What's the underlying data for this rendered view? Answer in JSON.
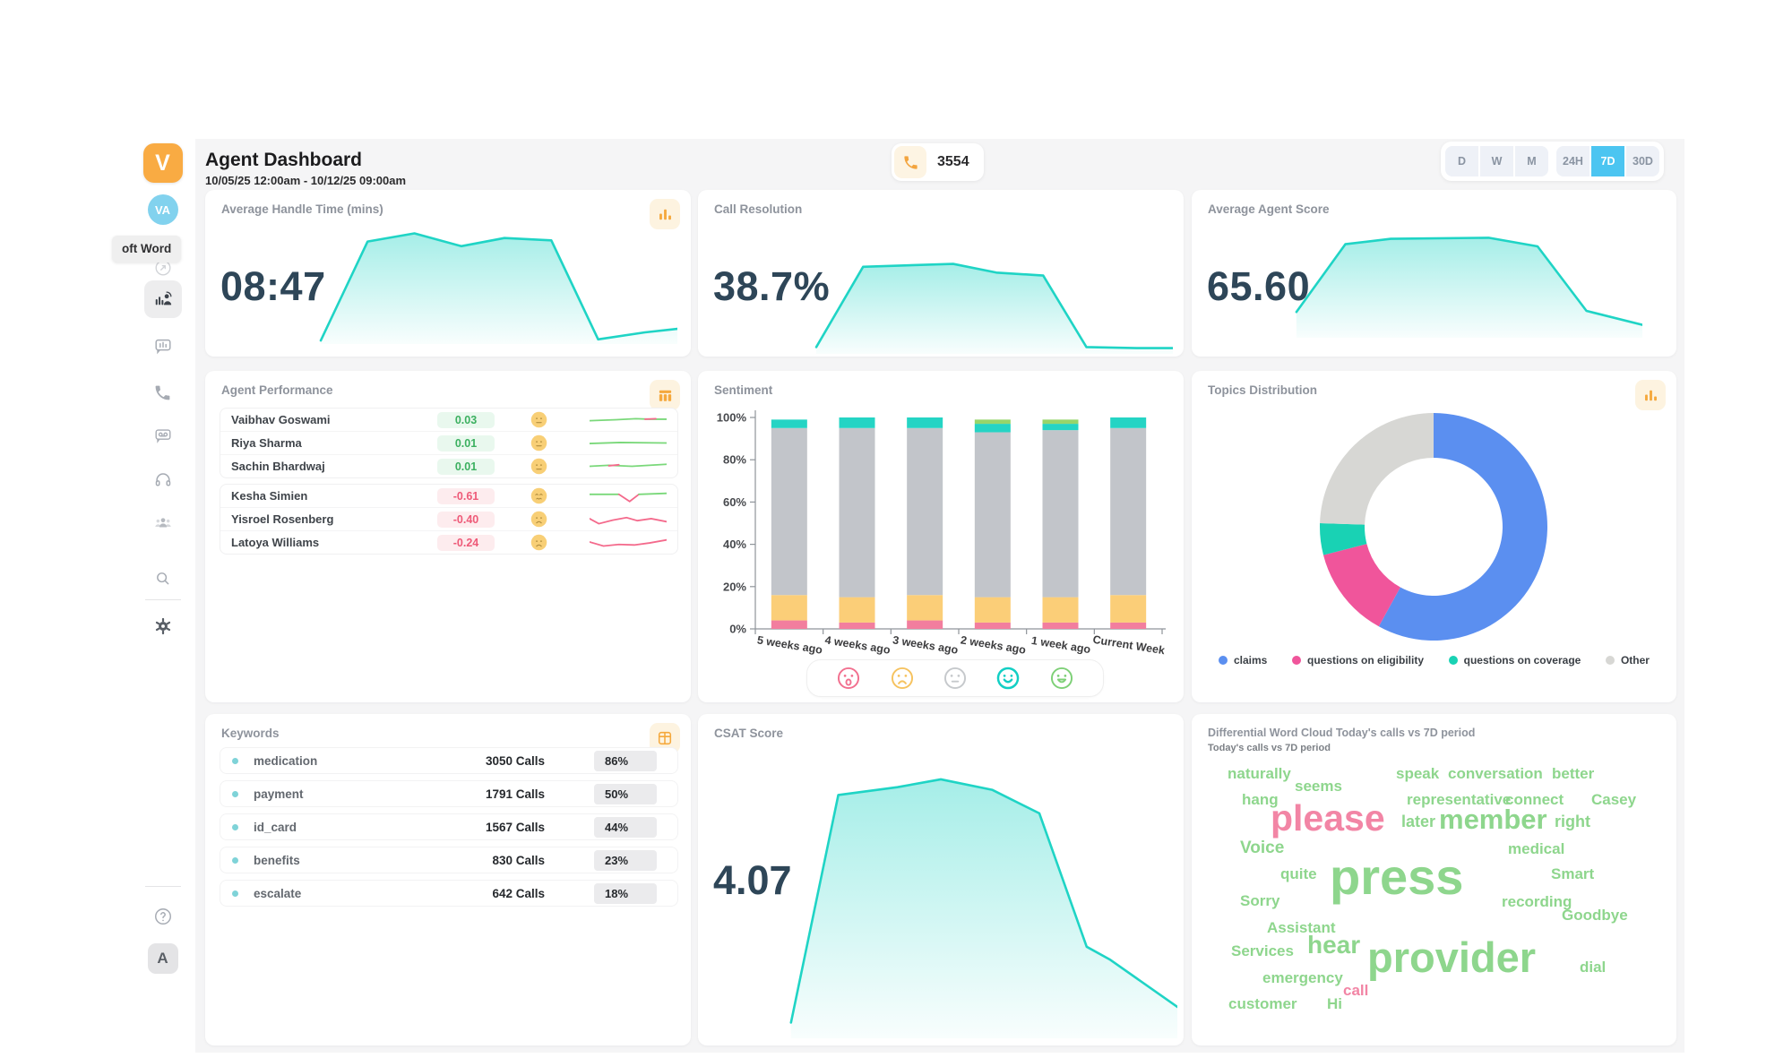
{
  "header": {
    "title": "Agent Dashboard",
    "date_range": "10/05/25 12:00am - 10/12/25 09:00am",
    "call_count": "3554",
    "active_color": "#4cc5f1",
    "range_buttons": [
      {
        "label": "D",
        "active": false
      },
      {
        "label": "W",
        "active": false
      },
      {
        "label": "M",
        "active": false
      },
      {
        "label": "24H",
        "active": false
      },
      {
        "label": "7D",
        "active": true
      },
      {
        "label": "30D",
        "active": false
      }
    ]
  },
  "sidebar": {
    "logo_text": "V",
    "avatar_text": "VA",
    "tooltip_text": "oft Word",
    "bottom_avatar_text": "A"
  },
  "cards": {
    "aht": {
      "title": "Average Handle Time (mins)",
      "value": "08:47"
    },
    "resolution": {
      "title": "Call Resolution",
      "value": "38.7%"
    },
    "agent_score": {
      "title": "Average Agent Score",
      "value": "65.60"
    },
    "performance": {
      "title": "Agent Performance",
      "groups": [
        [
          {
            "name": "Vaibhav Goswami",
            "score": "0.03",
            "positive": true,
            "mood": "neutral",
            "spark": [
              {
                "color": "#7ad87a",
                "points": [
                  [
                    0,
                    17
                  ],
                  [
                    35,
                    15
                  ],
                  [
                    60,
                    13
                  ],
                  [
                    78,
                    14
                  ],
                  [
                    100,
                    14
                  ]
                ]
              },
              {
                "color": "#f46a8c",
                "points": [
                  [
                    72,
                    14
                  ],
                  [
                    86,
                    13
                  ]
                ]
              }
            ]
          },
          {
            "name": "Riya Sharma",
            "score": "0.01",
            "positive": true,
            "mood": "neutral",
            "spark": [
              {
                "color": "#7ad87a",
                "points": [
                  [
                    0,
                    16
                  ],
                  [
                    40,
                    14
                  ],
                  [
                    100,
                    15
                  ]
                ]
              }
            ]
          },
          {
            "name": "Sachin Bhardwaj",
            "score": "0.01",
            "positive": true,
            "mood": "neutral",
            "spark": [
              {
                "color": "#7ad87a",
                "points": [
                  [
                    0,
                    15
                  ],
                  [
                    25,
                    13
                  ],
                  [
                    55,
                    15
                  ],
                  [
                    100,
                    11
                  ]
                ]
              },
              {
                "color": "#f46a8c",
                "points": [
                  [
                    25,
                    14
                  ],
                  [
                    38,
                    12
                  ]
                ]
              }
            ]
          }
        ],
        [
          {
            "name": "Kesha Simien",
            "score": "-0.61",
            "positive": false,
            "mood": "grimace",
            "spark": [
              {
                "color": "#7ad87a",
                "points": [
                  [
                    0,
                    12
                  ],
                  [
                    38,
                    12
                  ]
                ]
              },
              {
                "color": "#f46a8c",
                "points": [
                  [
                    38,
                    12
                  ],
                  [
                    52,
                    26
                  ],
                  [
                    64,
                    12
                  ]
                ]
              },
              {
                "color": "#7ad87a",
                "points": [
                  [
                    64,
                    12
                  ],
                  [
                    100,
                    10
                  ]
                ]
              }
            ]
          },
          {
            "name": "Yisroel Rosenberg",
            "score": "-0.40",
            "positive": false,
            "mood": "sad",
            "spark": [
              {
                "color": "#f46a8c",
                "points": [
                  [
                    0,
                    14
                  ],
                  [
                    12,
                    24
                  ],
                  [
                    30,
                    17
                  ],
                  [
                    48,
                    12
                  ],
                  [
                    62,
                    18
                  ],
                  [
                    80,
                    14
                  ],
                  [
                    100,
                    20
                  ]
                ]
              }
            ]
          },
          {
            "name": "Latoya Williams",
            "score": "-0.24",
            "positive": false,
            "mood": "sad",
            "spark": [
              {
                "color": "#f46a8c",
                "points": [
                  [
                    0,
                    14
                  ],
                  [
                    18,
                    22
                  ],
                  [
                    38,
                    19
                  ],
                  [
                    58,
                    20
                  ],
                  [
                    78,
                    16
                  ],
                  [
                    100,
                    10
                  ]
                ]
              }
            ]
          }
        ]
      ]
    },
    "sentiment": {
      "title": "Sentiment",
      "emojis": [
        {
          "name": "very-negative",
          "mood": "cry",
          "color": "#f2708f"
        },
        {
          "name": "negative",
          "mood": "frown",
          "color": "#f6c360"
        },
        {
          "name": "neutral",
          "mood": "neutral",
          "color": "#c6c9cc"
        },
        {
          "name": "positive",
          "mood": "smile",
          "color": "#12cfc4"
        },
        {
          "name": "very-positive",
          "mood": "grin",
          "color": "#7ed077"
        }
      ]
    },
    "topics": {
      "title": "Topics Distribution"
    },
    "keywords": {
      "title": "Keywords",
      "rows": [
        {
          "keyword": "medication",
          "calls": "3050 Calls",
          "pct": "86%"
        },
        {
          "keyword": "payment",
          "calls": "1791 Calls",
          "pct": "50%"
        },
        {
          "keyword": "id_card",
          "calls": "1567 Calls",
          "pct": "44%"
        },
        {
          "keyword": "benefits",
          "calls": "830 Calls",
          "pct": "23%"
        },
        {
          "keyword": "escalate",
          "calls": "642 Calls",
          "pct": "18%"
        }
      ]
    },
    "csat": {
      "title": "CSAT Score",
      "value": "4.07"
    },
    "wordcloud": {
      "title": "Differential Word Cloud Today's calls vs 7D period",
      "subtitle": "Today's calls vs 7D period",
      "green": "#8ed68d",
      "pink": "#f285a5",
      "words": [
        [
          "naturally",
          22,
          0,
          17,
          ""
        ],
        [
          "speak",
          210,
          0,
          17,
          ""
        ],
        [
          "conversation",
          268,
          0,
          17,
          ""
        ],
        [
          "better",
          384,
          0,
          17,
          ""
        ],
        [
          "seems",
          97,
          14,
          17,
          ""
        ],
        [
          "hang",
          38,
          29,
          17,
          ""
        ],
        [
          "representative",
          222,
          29,
          17,
          ""
        ],
        [
          "connect",
          332,
          29,
          17,
          ""
        ],
        [
          "Casey",
          428,
          29,
          17,
          ""
        ],
        [
          "please",
          70,
          38,
          41,
          "p"
        ],
        [
          "later",
          216,
          53,
          18,
          ""
        ],
        [
          "member",
          258,
          44,
          31,
          ""
        ],
        [
          "right",
          387,
          53,
          18,
          ""
        ],
        [
          "Voice",
          36,
          82,
          19,
          ""
        ],
        [
          "medical",
          335,
          84,
          17,
          ""
        ],
        [
          "quite",
          81,
          112,
          17,
          ""
        ],
        [
          "Smart",
          383,
          112,
          17,
          ""
        ],
        [
          "press",
          136,
          96,
          56,
          ""
        ],
        [
          "Sorry",
          36,
          142,
          17,
          ""
        ],
        [
          "recording",
          328,
          143,
          17,
          ""
        ],
        [
          "Goodbye",
          395,
          158,
          17,
          ""
        ],
        [
          "Assistant",
          66,
          172,
          17,
          ""
        ],
        [
          "Services",
          26,
          198,
          17,
          ""
        ],
        [
          "hear",
          111,
          186,
          28,
          ""
        ],
        [
          "provider",
          178,
          190,
          47,
          ""
        ],
        [
          "dial",
          415,
          216,
          17,
          ""
        ],
        [
          "emergency",
          61,
          228,
          17,
          ""
        ],
        [
          "call",
          151,
          242,
          17,
          "p"
        ],
        [
          "customer",
          23,
          257,
          17,
          ""
        ],
        [
          "Hi",
          133,
          257,
          17,
          ""
        ]
      ]
    }
  },
  "chart_data": [
    {
      "id": "aht-chart",
      "type": "area",
      "title": "Average Handle Time trend",
      "color": "#1fd4c5",
      "points": [
        [
          1,
          97
        ],
        [
          14,
          12
        ],
        [
          27,
          5
        ],
        [
          40,
          16
        ],
        [
          52,
          9
        ],
        [
          65,
          11
        ],
        [
          78,
          96
        ],
        [
          91,
          90
        ],
        [
          100,
          87
        ]
      ]
    },
    {
      "id": "resolution-chart",
      "type": "area",
      "title": "Call Resolution trend",
      "color": "#1fd4c5",
      "points": [
        [
          1,
          93
        ],
        [
          14,
          10
        ],
        [
          39,
          7
        ],
        [
          51,
          16
        ],
        [
          64,
          19
        ],
        [
          76,
          93
        ],
        [
          90,
          94
        ],
        [
          100,
          94
        ]
      ]
    },
    {
      "id": "score-chart",
      "type": "area",
      "title": "Average Agent Score trend",
      "color": "#1fd4c5",
      "points": [
        [
          1,
          76
        ],
        [
          15,
          13
        ],
        [
          28,
          8
        ],
        [
          56,
          7
        ],
        [
          70,
          15
        ],
        [
          84,
          75
        ],
        [
          100,
          88
        ]
      ]
    },
    {
      "id": "csat-chart",
      "type": "area",
      "title": "CSAT Score trend",
      "color": "#1fd4c5",
      "points": [
        [
          2,
          94
        ],
        [
          14,
          7
        ],
        [
          29,
          4
        ],
        [
          40,
          1
        ],
        [
          53,
          5
        ],
        [
          65,
          14
        ],
        [
          77,
          65
        ],
        [
          83,
          70
        ],
        [
          100,
          88
        ]
      ]
    },
    {
      "id": "sentiment-chart",
      "type": "stacked-bar",
      "title": "Sentiment",
      "categories": [
        "5 weeks ago",
        "4 weeks ago",
        "3 weeks ago",
        "2 weeks ago",
        "1 week ago",
        "Current Week"
      ],
      "series": [
        {
          "name": "negative",
          "color": "#f27e9e",
          "values": [
            4,
            3,
            4,
            3,
            3,
            3
          ]
        },
        {
          "name": "somewhat negative",
          "color": "#fbce78",
          "values": [
            12,
            12,
            12,
            12,
            12,
            13
          ]
        },
        {
          "name": "neutral",
          "color": "#c2c5ca",
          "values": [
            79,
            80,
            79,
            78,
            79,
            79
          ]
        },
        {
          "name": "positive",
          "color": "#25d4c4",
          "values": [
            4,
            5,
            5,
            4,
            3,
            5
          ]
        },
        {
          "name": "very positive",
          "color": "#97d56a",
          "values": [
            0,
            0,
            0,
            2,
            2,
            0
          ]
        }
      ],
      "ylim": [
        0,
        100
      ],
      "yticks": [
        "0%",
        "20%",
        "40%",
        "60%",
        "80%",
        "100%"
      ]
    },
    {
      "id": "topics-chart",
      "type": "donut",
      "title": "Topics Distribution",
      "slices": [
        {
          "label": "claims",
          "value": 58,
          "color": "#5b8ff0"
        },
        {
          "label": "questions on eligibility",
          "value": 13,
          "color": "#f0559b"
        },
        {
          "label": "questions on coverage",
          "value": 4.5,
          "color": "#19d2b4"
        },
        {
          "label": "Other",
          "value": 24.5,
          "color": "#d7d7d4"
        }
      ]
    }
  ]
}
